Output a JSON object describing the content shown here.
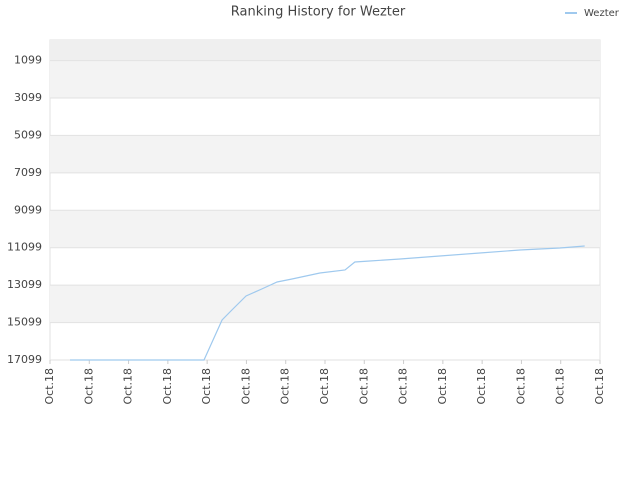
{
  "chart_data": {
    "type": "line",
    "title": "Ranking History for Wezter",
    "series": [
      {
        "name": "Wezter",
        "color": "#9fc9ee",
        "x": [
          0.51,
          3.92,
          4.38,
          4.63,
          4.99,
          5.39,
          5.78,
          6.16,
          6.87,
          7.51,
          7.76,
          8.14,
          8.91,
          9.92,
          10.94,
          11.96,
          12.98,
          13.61
        ],
        "values": [
          17099,
          17099,
          14961,
          14427,
          13679,
          13305,
          12931,
          12770,
          12450,
          12289,
          11862,
          11808,
          11701,
          11541,
          11381,
          11221,
          11114,
          11007
        ]
      }
    ],
    "xlim": [
      0,
      14
    ],
    "xticks": [
      {
        "value": 0,
        "label": "Oct.18"
      },
      {
        "value": 1,
        "label": "Oct.18"
      },
      {
        "value": 2,
        "label": "Oct.18"
      },
      {
        "value": 3,
        "label": "Oct.18"
      },
      {
        "value": 4,
        "label": "Oct.18"
      },
      {
        "value": 5,
        "label": "Oct.18"
      },
      {
        "value": 6,
        "label": "Oct.18"
      },
      {
        "value": 7,
        "label": "Oct.18"
      },
      {
        "value": 8,
        "label": "Oct.18"
      },
      {
        "value": 9,
        "label": "Oct.18"
      },
      {
        "value": 10,
        "label": "Oct.18"
      },
      {
        "value": 11,
        "label": "Oct.18"
      },
      {
        "value": 12,
        "label": "Oct.18"
      },
      {
        "value": 13,
        "label": "Oct.18"
      },
      {
        "value": 14,
        "label": "Oct.18"
      }
    ],
    "ylim": [
      17099,
      0
    ],
    "yticks": [
      1099,
      3099,
      5099,
      7099,
      9099,
      11099,
      13099,
      15099,
      17099
    ],
    "grid": true,
    "legend": "top-right"
  }
}
